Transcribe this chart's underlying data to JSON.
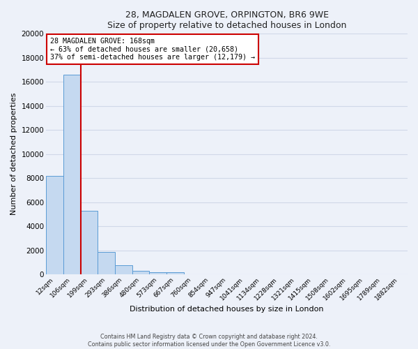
{
  "title": "28, MAGDALEN GROVE, ORPINGTON, BR6 9WE",
  "subtitle": "Size of property relative to detached houses in London",
  "xlabel": "Distribution of detached houses by size in London",
  "ylabel": "Number of detached properties",
  "bar_color": "#c5d9f0",
  "bar_edge_color": "#5a9bd5",
  "background_color": "#edf1f9",
  "categories": [
    "12sqm",
    "106sqm",
    "199sqm",
    "293sqm",
    "386sqm",
    "480sqm",
    "573sqm",
    "667sqm",
    "760sqm",
    "854sqm",
    "947sqm",
    "1041sqm",
    "1134sqm",
    "1228sqm",
    "1321sqm",
    "1415sqm",
    "1508sqm",
    "1602sqm",
    "1695sqm",
    "1789sqm",
    "1882sqm"
  ],
  "values": [
    8200,
    16600,
    5300,
    1850,
    750,
    310,
    200,
    150,
    0,
    0,
    0,
    0,
    0,
    0,
    0,
    0,
    0,
    0,
    0,
    0,
    0
  ],
  "ylim": [
    0,
    20000
  ],
  "yticks": [
    0,
    2000,
    4000,
    6000,
    8000,
    10000,
    12000,
    14000,
    16000,
    18000,
    20000
  ],
  "property_line_x": 1.5,
  "annotation_box_title": "28 MAGDALEN GROVE: 168sqm",
  "annotation_line1": "← 63% of detached houses are smaller (20,658)",
  "annotation_line2": "37% of semi-detached houses are larger (12,179) →",
  "annotation_box_color": "#ffffff",
  "annotation_box_edge_color": "#cc0000",
  "property_line_color": "#cc0000",
  "grid_color": "#d0d8e8",
  "footer_line1": "Contains HM Land Registry data © Crown copyright and database right 2024.",
  "footer_line2": "Contains public sector information licensed under the Open Government Licence v3.0."
}
